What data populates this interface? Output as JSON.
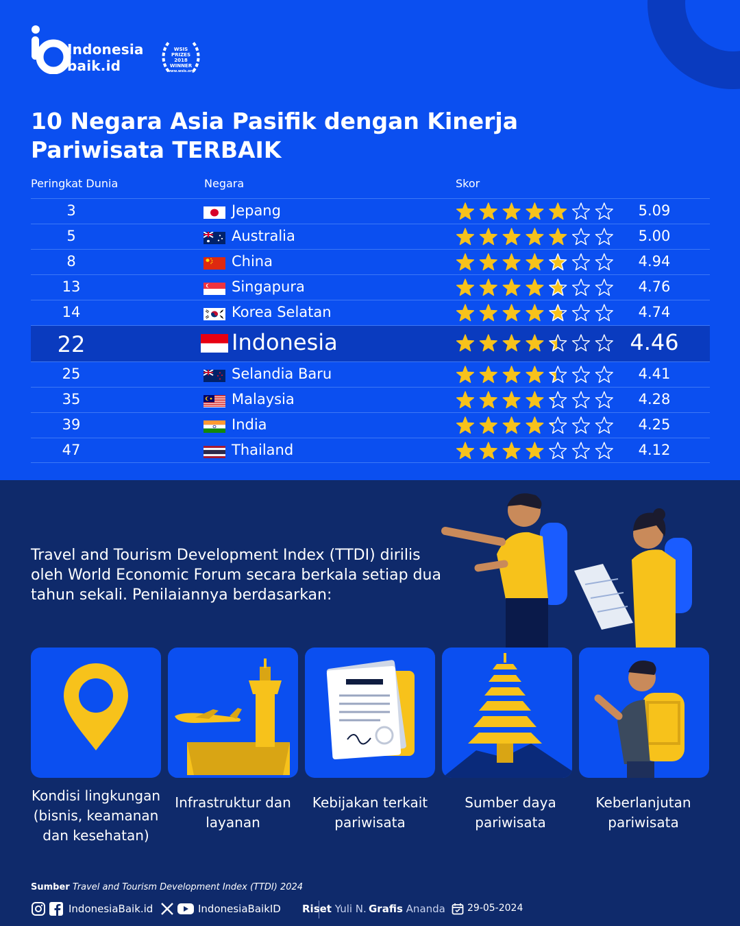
{
  "brand": {
    "name_line1": "Indonesia",
    "name_line2": "baik.id",
    "award_line1": "WSIS",
    "award_line2": "PRIZES",
    "award_line3": "2018",
    "award_line4": "WINNER",
    "award_url": "www.wsis.org"
  },
  "title_line1": "10 Negara Asia Pasifik dengan Kinerja",
  "title_line2": "Pariwisata TERBAIK",
  "table": {
    "headers": {
      "rank": "Peringkat Dunia",
      "country": "Negara",
      "score": "Skor"
    },
    "rows": [
      {
        "rank": "3",
        "country": "Jepang",
        "flag": "japan",
        "score": "5.09"
      },
      {
        "rank": "5",
        "country": "Australia",
        "flag": "australia",
        "score": "5.00"
      },
      {
        "rank": "8",
        "country": "China",
        "flag": "china",
        "score": "4.94"
      },
      {
        "rank": "13",
        "country": "Singapura",
        "flag": "singapore",
        "score": "4.76"
      },
      {
        "rank": "14",
        "country": "Korea Selatan",
        "flag": "south-korea",
        "score": "4.74"
      },
      {
        "rank": "22",
        "country": "Indonesia",
        "flag": "indonesia",
        "score": "4.46",
        "highlight": true
      },
      {
        "rank": "25",
        "country": "Selandia Baru",
        "flag": "new-zealand",
        "score": "4.41"
      },
      {
        "rank": "35",
        "country": "Malaysia",
        "flag": "malaysia",
        "score": "4.28"
      },
      {
        "rank": "39",
        "country": "India",
        "flag": "india",
        "score": "4.25"
      },
      {
        "rank": "47",
        "country": "Thailand",
        "flag": "thailand",
        "score": "4.12"
      }
    ],
    "star_max": 7,
    "star_color": "#f7c21b"
  },
  "intro": "Travel and Tourism Development Index (TTDI) dirilis oleh World Economic Forum secara berkala setiap dua tahun sekali. Penilaiannya berdasarkan:",
  "criteria": [
    {
      "label": "Kondisi lingkungan (bisnis, keamanan dan kesehatan)",
      "icon": "location-pin-icon"
    },
    {
      "label": "Infrastruktur dan layanan",
      "icon": "airport-tower-icon"
    },
    {
      "label": "Kebijakan terkait pariwisata",
      "icon": "policy-document-icon"
    },
    {
      "label": "Sumber daya pariwisata",
      "icon": "pagoda-temple-icon"
    },
    {
      "label": "Keberlanjutan pariwisata",
      "icon": "backpacker-icon"
    }
  ],
  "footer": {
    "source_label": "Sumber",
    "source_text": "Travel and Tourism Development Index (TTDI) 2024",
    "handle_ig_fb": "IndonesiaBaik.id",
    "handle_x_yt": "IndonesiaBaikID",
    "riset_label": "Riset",
    "riset_name": "Yuli N.",
    "grafis_label": "Grafis",
    "grafis_name": "Ananda",
    "date": "29-05-2024"
  },
  "colors": {
    "blue": "#0b4ff0",
    "navy": "#0f2a6b",
    "row_highlight": "#0a3bbf",
    "yellow": "#f7c21b"
  }
}
